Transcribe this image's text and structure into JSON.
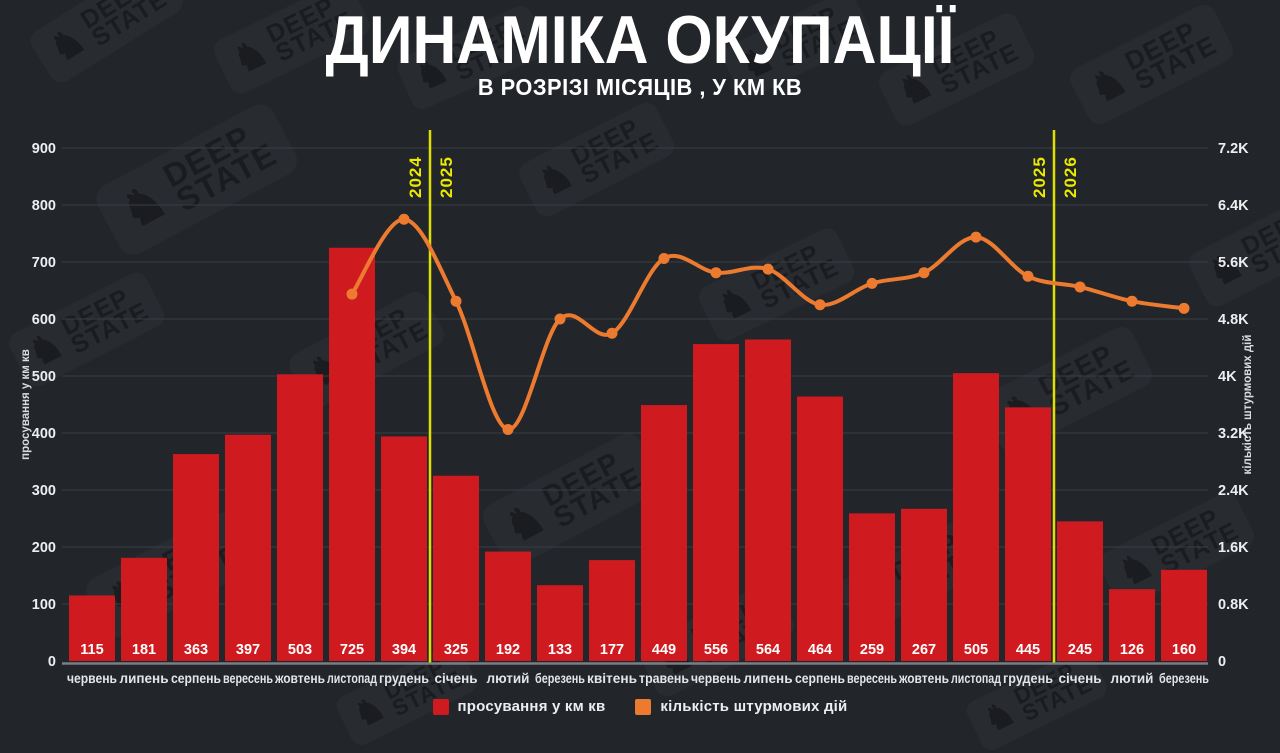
{
  "header": {
    "title": "ДИНАМІКА ОКУПАЦІЇ",
    "subtitle": "В РОЗРІЗІ МІСЯЦІВ , У КМ КВ"
  },
  "watermark": {
    "word1": "DEEP",
    "word2": "STATE",
    "knight_icon": "♞"
  },
  "colors": {
    "background": "#22252a",
    "bar": "#cf1b20",
    "line": "#ec7b30",
    "divider": "#e0e000",
    "year_label": "#e8ea00",
    "grid": "#3a3e44",
    "axis_line": "#7a7e84",
    "tick_text": "#eceef0",
    "bar_label": "#ffffff",
    "month_label": "#e4e5e7"
  },
  "left_axis": {
    "title": "просування у км кв",
    "ticks": [
      "0",
      "100",
      "200",
      "300",
      "400",
      "500",
      "600",
      "700",
      "800",
      "900"
    ],
    "max": 900
  },
  "right_axis": {
    "title": "кількість штурмових дій",
    "ticks": [
      "0",
      "0.8K",
      "1.6K",
      "2.4K",
      "3.2K",
      "4K",
      "4.8K",
      "5.6K",
      "6.4K",
      "7.2K"
    ],
    "max": 7200
  },
  "dividers": [
    {
      "left_year": "2024",
      "right_year": "2025",
      "after_index": 6
    },
    {
      "left_year": "2025",
      "right_year": "2026",
      "after_index": 18
    }
  ],
  "legend": [
    {
      "label": "просування у км кв",
      "color": "#cf1b20"
    },
    {
      "label": "кількість штурмових дій",
      "color": "#ec7b30"
    }
  ],
  "chart_data": {
    "type": "bar",
    "title": "ДИНАМІКА ОКУПАЦІЇ",
    "subtitle": "В РОЗРІЗІ МІСЯЦІВ , У КМ КВ",
    "categories": [
      "червень",
      "липень",
      "серпень",
      "вересень",
      "жовтень",
      "листопад",
      "грудень",
      "січень",
      "лютий",
      "березень",
      "квітень",
      "травень",
      "червень",
      "липень",
      "серпень",
      "вересень",
      "жовтень",
      "листопад",
      "грудень",
      "січень",
      "лютий",
      "березень"
    ],
    "series": [
      {
        "name": "просування у км кв",
        "type": "bar",
        "axis": "left",
        "values": [
          115,
          181,
          363,
          397,
          503,
          725,
          394,
          325,
          192,
          133,
          177,
          449,
          556,
          564,
          464,
          259,
          267,
          505,
          445,
          245,
          126,
          160
        ]
      },
      {
        "name": "кількість штурмових дій",
        "type": "line",
        "axis": "right",
        "values": [
          null,
          null,
          null,
          null,
          null,
          5150,
          6200,
          5050,
          3250,
          4800,
          4600,
          5650,
          5450,
          5500,
          5000,
          5300,
          5450,
          5950,
          5400,
          5250,
          5050,
          4950
        ]
      }
    ],
    "left_ylim": [
      0,
      900
    ],
    "right_ylim": [
      0,
      7200
    ],
    "grid": true,
    "legend_position": "bottom"
  }
}
